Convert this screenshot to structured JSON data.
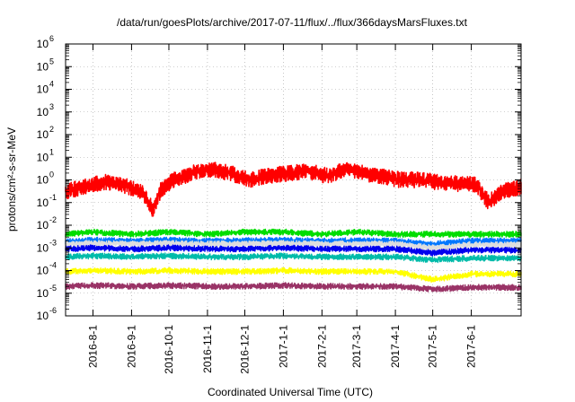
{
  "chart_data": {
    "type": "line",
    "title": "/data/run/goesPlots/archive/2017-07-11/flux/../flux/366daysMarsFluxes.txt",
    "xlabel": "Coordinated Universal Time (UTC)",
    "ylabel": "protons/cm²-s-sr-MeV",
    "yscale": "log",
    "xlim": [
      "2016-07-10",
      "2017-07-11"
    ],
    "ylim": [
      1e-06,
      1000000.0
    ],
    "grid": true,
    "x_ticks": [
      "2016-8-1",
      "2016-9-1",
      "2016-10-1",
      "2016-11-1",
      "2016-12-1",
      "2017-1-1",
      "2017-2-1",
      "2017-3-1",
      "2017-4-1",
      "2017-5-1",
      "2017-6-1"
    ],
    "y_tick_labels": [
      {
        "base": "10",
        "exp": "-6"
      },
      {
        "base": "10",
        "exp": "-5"
      },
      {
        "base": "10",
        "exp": "-4"
      },
      {
        "base": "10",
        "exp": "-3"
      },
      {
        "base": "10",
        "exp": "-2"
      },
      {
        "base": "10",
        "exp": "-1"
      },
      {
        "base": "10",
        "exp": "0"
      },
      {
        "base": "10",
        "exp": "1"
      },
      {
        "base": "10",
        "exp": "2"
      },
      {
        "base": "10",
        "exp": "3"
      },
      {
        "base": "10",
        "exp": "4"
      },
      {
        "base": "10",
        "exp": "5"
      },
      {
        "base": "10",
        "exp": "6"
      }
    ],
    "series": [
      {
        "color": "#00dd00",
        "x": [
          "2016-07-10",
          "2016-08-01",
          "2016-09-01",
          "2016-10-01",
          "2016-11-01",
          "2016-12-01",
          "2017-01-01",
          "2017-02-01",
          "2017-03-01",
          "2017-04-01",
          "2017-05-01",
          "2017-06-01",
          "2017-07-11"
        ],
        "y": [
          0.004,
          0.005,
          0.004,
          0.005,
          0.004,
          0.005,
          0.005,
          0.004,
          0.005,
          0.004,
          0.004,
          0.004,
          0.004
        ]
      },
      {
        "color": "#0077ff",
        "x": [
          "2016-07-10",
          "2016-08-01",
          "2016-09-01",
          "2016-10-01",
          "2016-11-01",
          "2016-12-01",
          "2017-01-01",
          "2017-02-01",
          "2017-03-01",
          "2017-04-01",
          "2017-05-01",
          "2017-06-01",
          "2017-07-11"
        ],
        "y": [
          0.002,
          0.0022,
          0.002,
          0.0022,
          0.002,
          0.0021,
          0.0022,
          0.002,
          0.0021,
          0.002,
          0.0015,
          0.002,
          0.002
        ]
      },
      {
        "color": "#dddddd",
        "x": [
          "2016-07-10",
          "2016-08-01",
          "2016-09-01",
          "2016-10-01",
          "2016-11-01",
          "2016-12-01",
          "2017-01-01",
          "2017-02-01",
          "2017-03-01",
          "2017-04-01",
          "2017-05-01",
          "2017-06-01",
          "2017-07-11"
        ],
        "y": [
          0.0015,
          0.0016,
          0.0015,
          0.0016,
          0.0015,
          0.0015,
          0.0016,
          0.0015,
          0.0015,
          0.0015,
          0.001,
          0.0014,
          0.0014
        ]
      },
      {
        "color": "#0000ee",
        "x": [
          "2016-07-10",
          "2016-08-01",
          "2016-09-01",
          "2016-10-01",
          "2016-11-01",
          "2016-12-01",
          "2017-01-01",
          "2017-02-01",
          "2017-03-01",
          "2017-04-01",
          "2017-05-01",
          "2017-06-01",
          "2017-07-11"
        ],
        "y": [
          0.0009,
          0.001,
          0.0009,
          0.001,
          0.0009,
          0.0009,
          0.001,
          0.0009,
          0.0009,
          0.0009,
          0.0006,
          0.0008,
          0.0008
        ]
      },
      {
        "color": "#00bbaa",
        "x": [
          "2016-07-10",
          "2016-08-01",
          "2016-09-01",
          "2016-10-01",
          "2016-11-01",
          "2016-12-01",
          "2017-01-01",
          "2017-02-01",
          "2017-03-01",
          "2017-04-01",
          "2017-05-01",
          "2017-06-01",
          "2017-07-11"
        ],
        "y": [
          0.0004,
          0.00045,
          0.0004,
          0.00045,
          0.0004,
          0.0004,
          0.00045,
          0.0004,
          0.0004,
          0.0004,
          0.0003,
          0.00035,
          0.00035
        ]
      },
      {
        "color": "#ffff00",
        "x": [
          "2016-07-10",
          "2016-08-01",
          "2016-09-01",
          "2016-10-01",
          "2016-11-01",
          "2016-12-01",
          "2017-01-01",
          "2017-02-01",
          "2017-03-01",
          "2017-04-01",
          "2017-05-01",
          "2017-06-01",
          "2017-07-11"
        ],
        "y": [
          9e-05,
          0.0001,
          9e-05,
          0.0001,
          9e-05,
          9e-05,
          0.0001,
          9e-05,
          9e-05,
          9e-05,
          4e-05,
          7e-05,
          7e-05
        ]
      },
      {
        "color": "#993366",
        "x": [
          "2016-07-10",
          "2016-08-01",
          "2016-09-01",
          "2016-10-01",
          "2016-11-01",
          "2016-12-01",
          "2017-01-01",
          "2017-02-01",
          "2017-03-01",
          "2017-04-01",
          "2017-05-01",
          "2017-06-01",
          "2017-07-11"
        ],
        "y": [
          2e-05,
          2.2e-05,
          2e-05,
          2.2e-05,
          2e-05,
          2e-05,
          2.2e-05,
          2e-05,
          2e-05,
          2e-05,
          1.5e-05,
          1.8e-05,
          1.8e-05
        ]
      },
      {
        "color": "#ff0000",
        "x": [
          "2016-07-10",
          "2016-07-25",
          "2016-08-10",
          "2016-08-25",
          "2016-09-10",
          "2016-09-18",
          "2016-09-25",
          "2016-10-05",
          "2016-10-20",
          "2016-11-05",
          "2016-11-20",
          "2016-12-05",
          "2016-12-20",
          "2017-01-05",
          "2017-01-20",
          "2017-02-05",
          "2017-02-20",
          "2017-03-05",
          "2017-03-20",
          "2017-04-05",
          "2017-04-20",
          "2017-05-05",
          "2017-05-20",
          "2017-06-05",
          "2017-06-15",
          "2017-06-25",
          "2017-07-11"
        ],
        "y": [
          0.3,
          0.5,
          0.8,
          0.6,
          0.3,
          0.05,
          0.4,
          1.0,
          2.0,
          3.0,
          2.0,
          1.0,
          1.5,
          2.0,
          2.5,
          1.5,
          3.0,
          2.0,
          1.5,
          1.0,
          1.0,
          0.8,
          0.7,
          0.6,
          0.1,
          0.3,
          0.5
        ]
      }
    ]
  },
  "colors": {
    "series_colors": "per-series in chart_data.series",
    "frame": "#000000",
    "grid": "#a0a0a0"
  }
}
